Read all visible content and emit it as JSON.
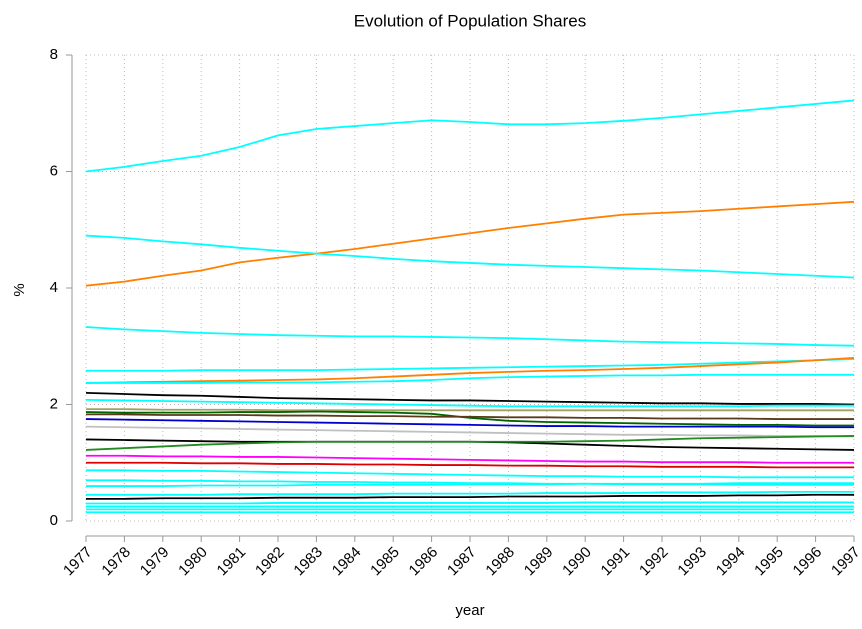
{
  "chart_data": {
    "type": "line",
    "title": "Evolution of Population Shares",
    "xlabel": "year",
    "ylabel": "%",
    "x": [
      1977,
      1978,
      1979,
      1980,
      1981,
      1982,
      1983,
      1984,
      1985,
      1986,
      1987,
      1988,
      1989,
      1990,
      1991,
      1992,
      1993,
      1994,
      1995,
      1996,
      1997
    ],
    "xlim": [
      1977,
      1997
    ],
    "xticks": [
      1977,
      1978,
      1979,
      1980,
      1981,
      1982,
      1983,
      1984,
      1985,
      1986,
      1987,
      1988,
      1989,
      1990,
      1991,
      1992,
      1993,
      1994,
      1995,
      1996,
      1997
    ],
    "ylim": [
      0,
      8
    ],
    "yticks": [
      0,
      2,
      4,
      6,
      8
    ],
    "grid": true,
    "series": [
      {
        "color": "#00ffff",
        "values": [
          6.0,
          6.08,
          6.18,
          6.27,
          6.42,
          6.62,
          6.73,
          6.78,
          6.83,
          6.88,
          6.85,
          6.81,
          6.81,
          6.83,
          6.87,
          6.92,
          6.98,
          7.04,
          7.1,
          7.16,
          7.22
        ]
      },
      {
        "color": "#ff8000",
        "values": [
          4.04,
          4.11,
          4.21,
          4.3,
          4.44,
          4.52,
          4.59,
          4.67,
          4.76,
          4.85,
          4.94,
          5.03,
          5.11,
          5.19,
          5.26,
          5.29,
          5.32,
          5.36,
          5.4,
          5.44,
          5.48
        ]
      },
      {
        "color": "#00ffff",
        "values": [
          4.9,
          4.86,
          4.8,
          4.75,
          4.69,
          4.64,
          4.59,
          4.55,
          4.5,
          4.46,
          4.43,
          4.4,
          4.38,
          4.36,
          4.34,
          4.32,
          4.3,
          4.27,
          4.24,
          4.21,
          4.18
        ]
      },
      {
        "color": "#00ffff",
        "values": [
          3.33,
          3.29,
          3.26,
          3.23,
          3.21,
          3.19,
          3.18,
          3.17,
          3.17,
          3.16,
          3.15,
          3.14,
          3.12,
          3.1,
          3.08,
          3.07,
          3.06,
          3.05,
          3.04,
          3.02,
          3.01
        ]
      },
      {
        "color": "#00ffff",
        "values": [
          2.58,
          2.58,
          2.58,
          2.59,
          2.59,
          2.59,
          2.59,
          2.6,
          2.61,
          2.62,
          2.63,
          2.64,
          2.65,
          2.66,
          2.67,
          2.68,
          2.7,
          2.72,
          2.74,
          2.76,
          2.78
        ]
      },
      {
        "color": "#ff8000",
        "values": [
          2.37,
          2.38,
          2.39,
          2.4,
          2.41,
          2.42,
          2.43,
          2.45,
          2.48,
          2.51,
          2.54,
          2.56,
          2.58,
          2.59,
          2.61,
          2.63,
          2.66,
          2.69,
          2.72,
          2.76,
          2.8
        ]
      },
      {
        "color": "#00ffff",
        "values": [
          2.37,
          2.37,
          2.37,
          2.37,
          2.38,
          2.38,
          2.38,
          2.39,
          2.4,
          2.42,
          2.45,
          2.47,
          2.48,
          2.49,
          2.5,
          2.5,
          2.51,
          2.51,
          2.51,
          2.51,
          2.51
        ]
      },
      {
        "color": "#000000",
        "values": [
          2.2,
          2.18,
          2.16,
          2.15,
          2.13,
          2.11,
          2.1,
          2.09,
          2.08,
          2.07,
          2.07,
          2.06,
          2.05,
          2.04,
          2.03,
          2.02,
          2.02,
          2.01,
          2.01,
          2.01,
          2.0
        ]
      },
      {
        "color": "#00ffff",
        "values": [
          2.08,
          2.07,
          2.06,
          2.05,
          2.04,
          2.03,
          2.02,
          2.01,
          2.0,
          1.99,
          1.98,
          1.97,
          1.97,
          1.97,
          1.97,
          1.97,
          1.97,
          1.97,
          1.98,
          1.98,
          1.98
        ]
      },
      {
        "color": "#a0a060",
        "values": [
          1.92,
          1.92,
          1.91,
          1.91,
          1.91,
          1.9,
          1.9,
          1.9,
          1.9,
          1.9,
          1.9,
          1.9,
          1.9,
          1.9,
          1.9,
          1.9,
          1.9,
          1.9,
          1.9,
          1.9,
          1.9
        ]
      },
      {
        "color": "#006400",
        "values": [
          1.87,
          1.86,
          1.86,
          1.86,
          1.87,
          1.87,
          1.88,
          1.87,
          1.86,
          1.84,
          1.77,
          1.72,
          1.7,
          1.69,
          1.68,
          1.67,
          1.66,
          1.65,
          1.65,
          1.64,
          1.64
        ]
      },
      {
        "color": "#5a3a1a",
        "values": [
          1.83,
          1.83,
          1.82,
          1.82,
          1.82,
          1.81,
          1.81,
          1.8,
          1.8,
          1.79,
          1.79,
          1.78,
          1.78,
          1.77,
          1.77,
          1.76,
          1.76,
          1.76,
          1.75,
          1.75,
          1.75
        ]
      },
      {
        "color": "#0000cd",
        "values": [
          1.75,
          1.74,
          1.73,
          1.72,
          1.71,
          1.7,
          1.69,
          1.68,
          1.67,
          1.66,
          1.65,
          1.64,
          1.63,
          1.63,
          1.62,
          1.62,
          1.62,
          1.62,
          1.62,
          1.61,
          1.61
        ]
      },
      {
        "color": "#c0c0c0",
        "values": [
          1.62,
          1.61,
          1.6,
          1.59,
          1.58,
          1.57,
          1.56,
          1.55,
          1.54,
          1.53,
          1.52,
          1.51,
          1.5,
          1.49,
          1.48,
          1.48,
          1.47,
          1.47,
          1.46,
          1.46,
          1.45
        ]
      },
      {
        "color": "#000000",
        "values": [
          1.4,
          1.39,
          1.38,
          1.37,
          1.36,
          1.36,
          1.36,
          1.36,
          1.36,
          1.36,
          1.36,
          1.35,
          1.33,
          1.31,
          1.29,
          1.27,
          1.26,
          1.25,
          1.24,
          1.23,
          1.22
        ]
      },
      {
        "color": "#228b22",
        "values": [
          1.22,
          1.25,
          1.28,
          1.31,
          1.33,
          1.35,
          1.36,
          1.36,
          1.36,
          1.36,
          1.36,
          1.36,
          1.36,
          1.37,
          1.38,
          1.4,
          1.42,
          1.43,
          1.44,
          1.45,
          1.46
        ]
      },
      {
        "color": "#ff00ff",
        "values": [
          1.12,
          1.12,
          1.11,
          1.11,
          1.1,
          1.1,
          1.09,
          1.08,
          1.07,
          1.06,
          1.05,
          1.04,
          1.03,
          1.02,
          1.02,
          1.01,
          1.01,
          1.01,
          1.0,
          1.0,
          1.0
        ]
      },
      {
        "color": "#dd0000",
        "values": [
          1.0,
          1.0,
          1.0,
          0.99,
          0.99,
          0.98,
          0.98,
          0.97,
          0.97,
          0.96,
          0.96,
          0.95,
          0.95,
          0.94,
          0.94,
          0.93,
          0.93,
          0.93,
          0.92,
          0.92,
          0.92
        ]
      },
      {
        "color": "#00ffff",
        "values": [
          0.87,
          0.87,
          0.86,
          0.86,
          0.85,
          0.84,
          0.83,
          0.82,
          0.81,
          0.8,
          0.79,
          0.78,
          0.77,
          0.77,
          0.76,
          0.76,
          0.76,
          0.75,
          0.75,
          0.75,
          0.75
        ]
      },
      {
        "color": "#00ffff",
        "values": [
          0.7,
          0.7,
          0.69,
          0.69,
          0.68,
          0.68,
          0.67,
          0.67,
          0.66,
          0.66,
          0.65,
          0.65,
          0.64,
          0.64,
          0.63,
          0.63,
          0.63,
          0.62,
          0.62,
          0.62,
          0.62
        ]
      },
      {
        "color": "#00ffff",
        "values": [
          0.6,
          0.6,
          0.6,
          0.61,
          0.61,
          0.61,
          0.62,
          0.62,
          0.62,
          0.62,
          0.63,
          0.63,
          0.63,
          0.64,
          0.64,
          0.64,
          0.64,
          0.65,
          0.65,
          0.65,
          0.65
        ]
      },
      {
        "color": "#00ffff",
        "values": [
          0.45,
          0.45,
          0.45,
          0.45,
          0.46,
          0.46,
          0.46,
          0.46,
          0.47,
          0.47,
          0.47,
          0.47,
          0.48,
          0.48,
          0.48,
          0.49,
          0.49,
          0.49,
          0.5,
          0.5,
          0.5
        ]
      },
      {
        "color": "#000000",
        "values": [
          0.38,
          0.38,
          0.39,
          0.39,
          0.39,
          0.4,
          0.4,
          0.4,
          0.41,
          0.41,
          0.41,
          0.42,
          0.42,
          0.42,
          0.43,
          0.43,
          0.43,
          0.44,
          0.44,
          0.45,
          0.45
        ]
      },
      {
        "color": "#00ffff",
        "values": [
          0.3,
          0.3,
          0.3,
          0.3,
          0.3,
          0.31,
          0.31,
          0.31,
          0.31,
          0.31,
          0.31,
          0.31,
          0.31,
          0.32,
          0.32,
          0.32,
          0.32,
          0.32,
          0.32,
          0.32,
          0.32
        ]
      },
      {
        "color": "#00ffff",
        "values": [
          0.25,
          0.25,
          0.25,
          0.25,
          0.25,
          0.25,
          0.25,
          0.25,
          0.25,
          0.25,
          0.25,
          0.25,
          0.25,
          0.25,
          0.25,
          0.25,
          0.25,
          0.25,
          0.25,
          0.25,
          0.25
        ]
      },
      {
        "color": "#00ffff",
        "values": [
          0.2,
          0.2,
          0.2,
          0.2,
          0.2,
          0.2,
          0.2,
          0.2,
          0.2,
          0.2,
          0.2,
          0.2,
          0.2,
          0.2,
          0.2,
          0.2,
          0.2,
          0.2,
          0.2,
          0.2,
          0.2
        ]
      },
      {
        "color": "#00ffff",
        "values": [
          0.15,
          0.15,
          0.15,
          0.15,
          0.15,
          0.15,
          0.15,
          0.15,
          0.15,
          0.15,
          0.15,
          0.15,
          0.15,
          0.15,
          0.15,
          0.15,
          0.15,
          0.15,
          0.15,
          0.15,
          0.15
        ]
      }
    ]
  }
}
